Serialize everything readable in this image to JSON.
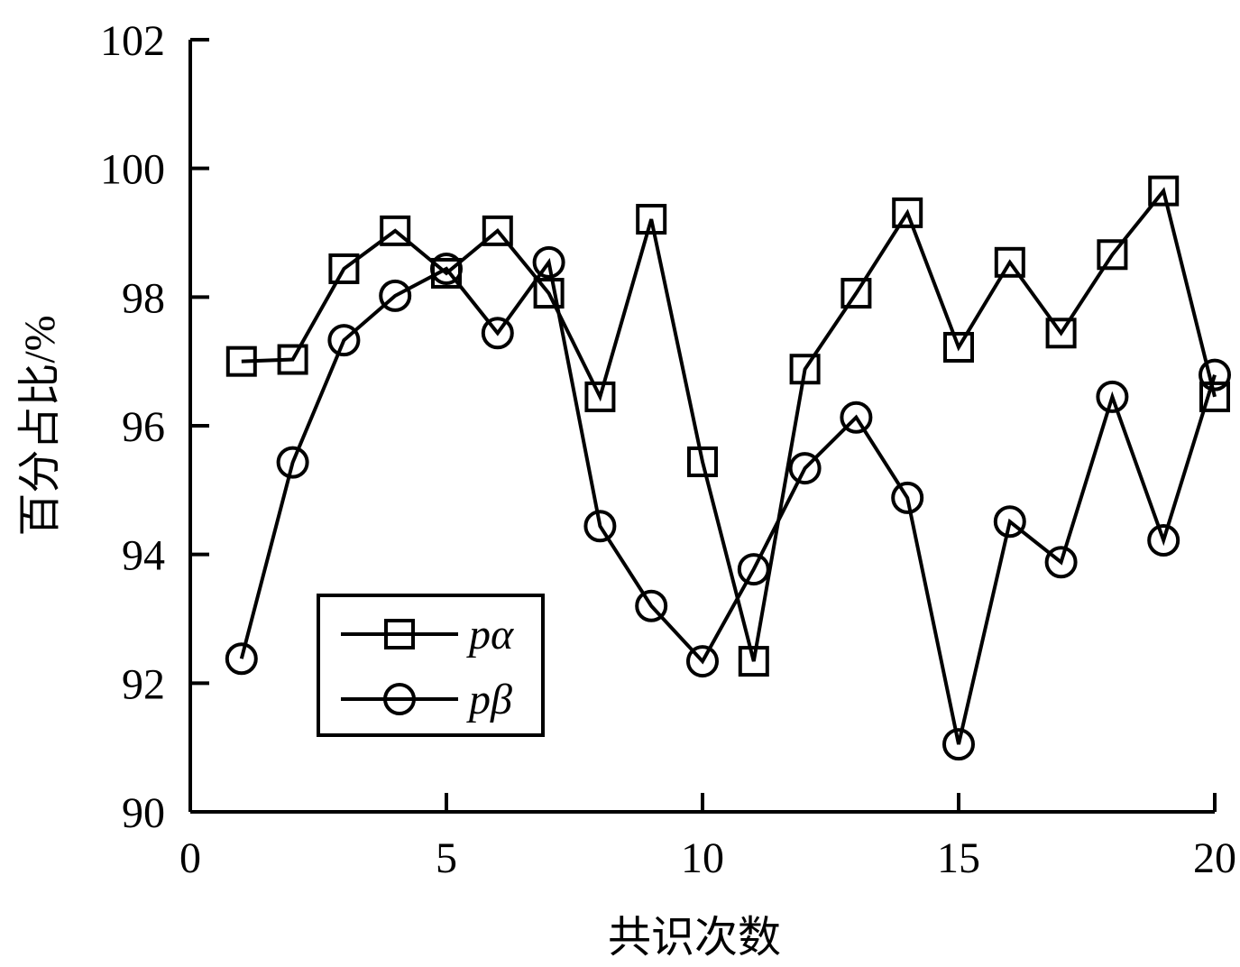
{
  "chart_data": {
    "type": "line",
    "x_label": "共识次数",
    "y_label": "百分占比/%",
    "x": [
      1,
      2,
      3,
      4,
      5,
      6,
      7,
      8,
      9,
      10,
      11,
      12,
      13,
      14,
      15,
      16,
      17,
      18,
      19,
      20
    ],
    "series": [
      {
        "name": "pα",
        "color": "#000000",
        "marker": "square",
        "values": [
          97.0,
          97.03,
          98.44,
          99.03,
          98.37,
          99.03,
          98.06,
          96.45,
          99.21,
          95.44,
          92.34,
          96.88,
          98.06,
          99.31,
          97.22,
          98.54,
          97.44,
          98.66,
          99.65,
          96.45
        ]
      },
      {
        "name": "pβ",
        "color": "#000000",
        "marker": "circle",
        "values": [
          92.38,
          95.43,
          97.33,
          98.02,
          98.44,
          97.44,
          98.54,
          94.44,
          93.2,
          92.34,
          93.77,
          95.34,
          96.13,
          94.88,
          91.05,
          94.51,
          93.88,
          96.45,
          94.22,
          96.79
        ]
      }
    ],
    "xlim": [
      0,
      20
    ],
    "xticks": [
      0,
      5,
      10,
      15,
      20
    ],
    "ylim": [
      90,
      102
    ],
    "yticks": [
      90,
      92,
      94,
      96,
      98,
      100,
      102
    ],
    "legend": "lower-left"
  }
}
